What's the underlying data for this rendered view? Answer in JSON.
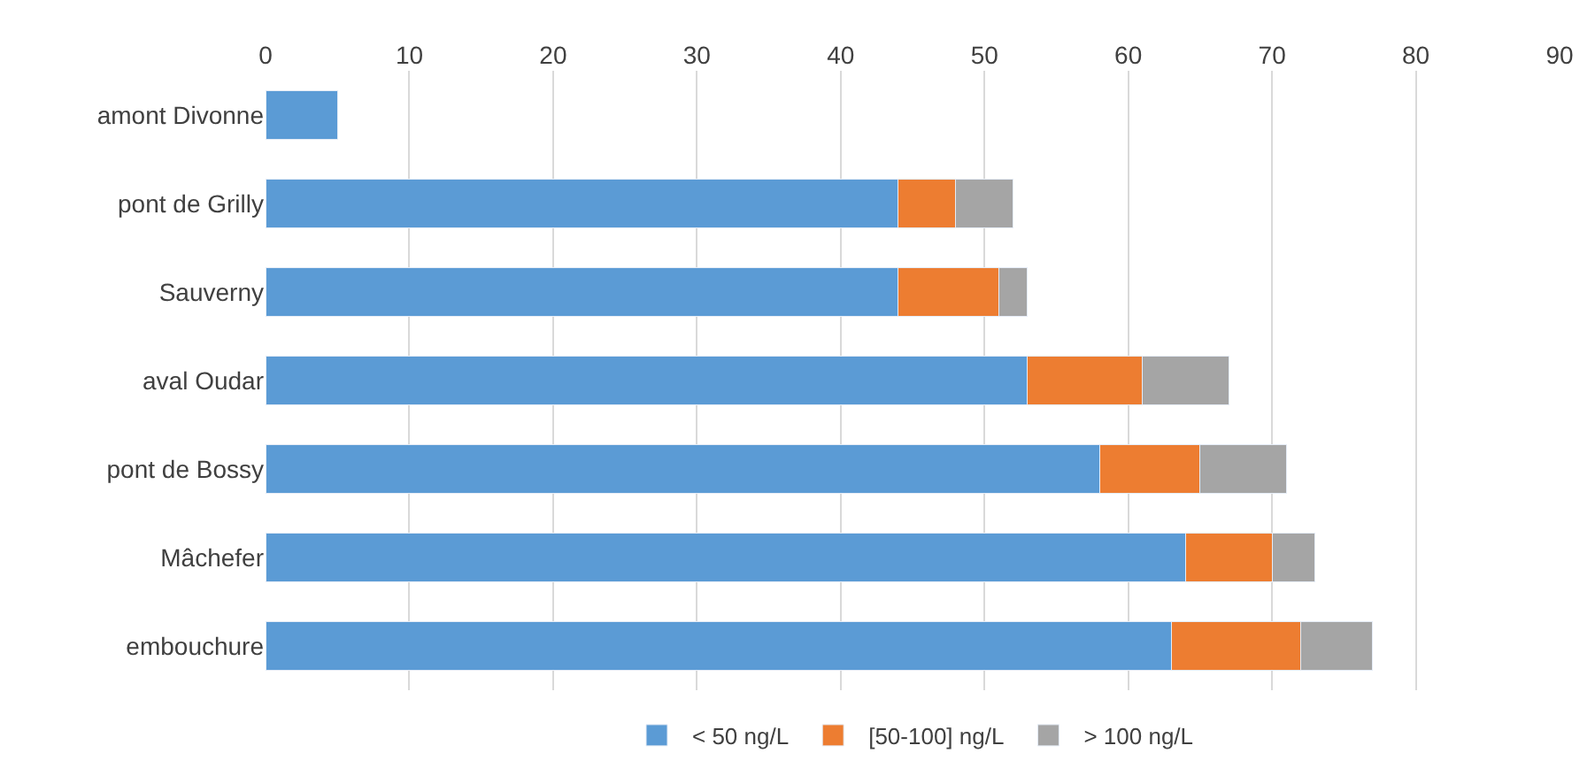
{
  "chart_data": {
    "type": "bar",
    "orientation": "horizontal",
    "stacked": true,
    "categories": [
      "amont Divonne",
      "pont de Grilly",
      "Sauverny",
      "aval Oudar",
      "pont de Bossy",
      "Mâchefer",
      "embouchure"
    ],
    "series": [
      {
        "name": "< 50 ng/L",
        "color": "#5b9bd5",
        "values": [
          5,
          44,
          44,
          53,
          58,
          64,
          63
        ]
      },
      {
        "name": "[50-100] ng/L",
        "color": "#ed7d31",
        "values": [
          null,
          4,
          7,
          8,
          7,
          6,
          9
        ]
      },
      {
        "name": "> 100 ng/L",
        "color": "#a5a5a5",
        "values": [
          null,
          4,
          2,
          6,
          6,
          3,
          5
        ]
      }
    ],
    "xlim": [
      0,
      90
    ],
    "xticks": [
      0,
      10,
      20,
      30,
      40,
      50,
      60,
      70,
      80,
      90
    ],
    "grid": "x",
    "legend": "bottom"
  }
}
